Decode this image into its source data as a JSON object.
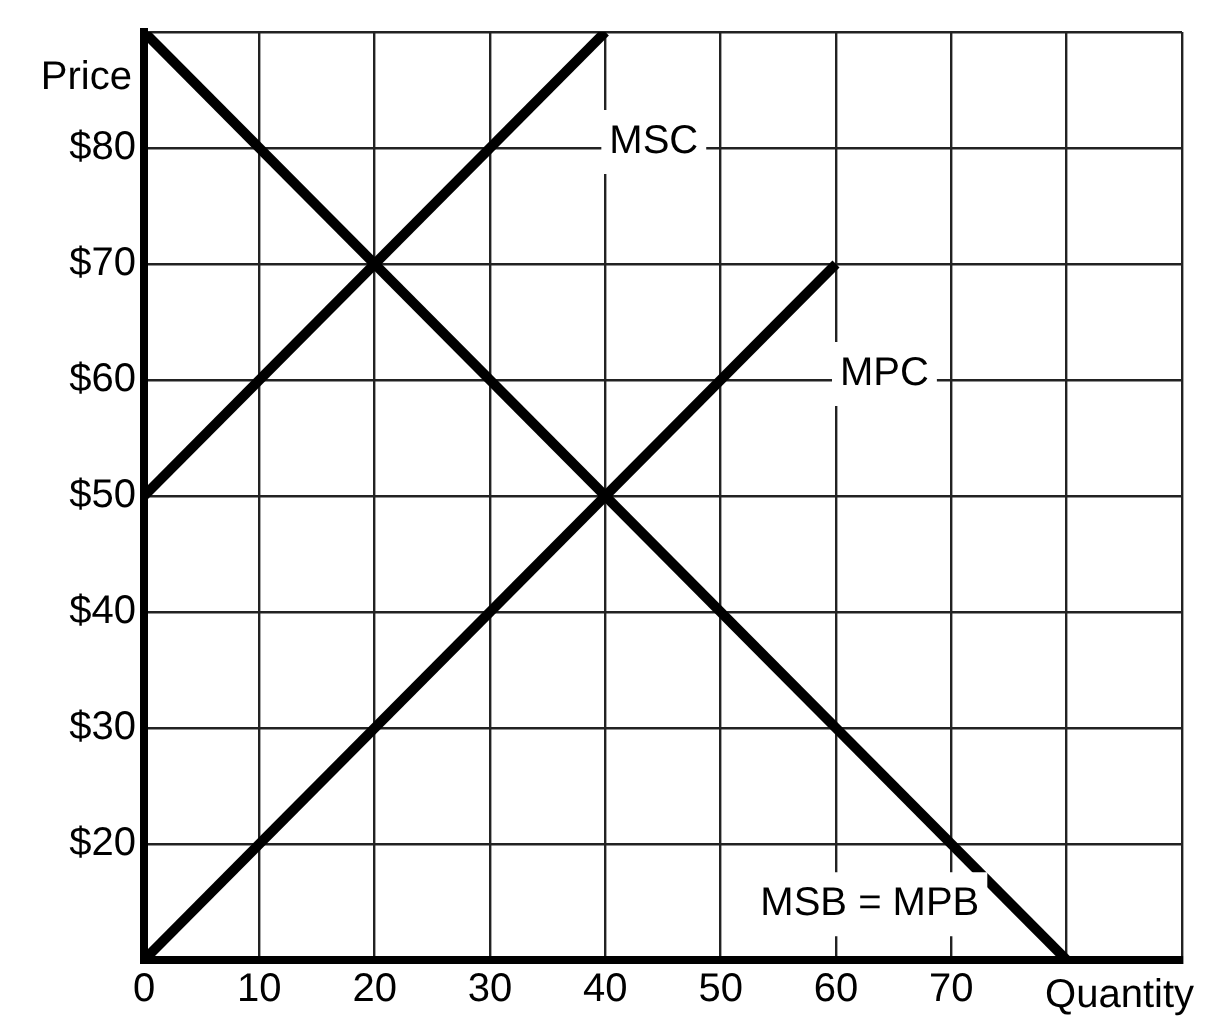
{
  "chart_data": {
    "type": "line",
    "xlabel": "Quantity",
    "ylabel": "Price",
    "series": [
      {
        "name": "MSC",
        "color": "#000000",
        "x": [
          0,
          40
        ],
        "values": [
          50,
          90
        ]
      },
      {
        "name": "MPC",
        "color": "#000000",
        "x": [
          0,
          60
        ],
        "values": [
          10,
          70
        ]
      },
      {
        "name": "MSB = MPB",
        "color": "#000000",
        "x": [
          0,
          80
        ],
        "values": [
          90,
          10
        ]
      }
    ],
    "xlim": [
      0,
      90
    ],
    "ylim": [
      10,
      90
    ],
    "xticks": [
      0,
      10,
      20,
      30,
      40,
      50,
      60,
      70,
      {
        "value": 80,
        "label": null
      },
      {
        "value": 90,
        "label": null
      }
    ],
    "yticks": [
      {
        "value": 10,
        "label": null
      },
      {
        "value": 20,
        "label": "$20"
      },
      {
        "value": 30,
        "label": "$30"
      },
      {
        "value": 40,
        "label": "$40"
      },
      {
        "value": 50,
        "label": "$50"
      },
      {
        "value": 60,
        "label": "$60"
      },
      {
        "value": 70,
        "label": "$70"
      },
      {
        "value": 80,
        "label": "$80"
      },
      {
        "value": 90,
        "label": null
      }
    ],
    "grid": true,
    "legend": false,
    "marker": "none",
    "line_style": "solid"
  }
}
